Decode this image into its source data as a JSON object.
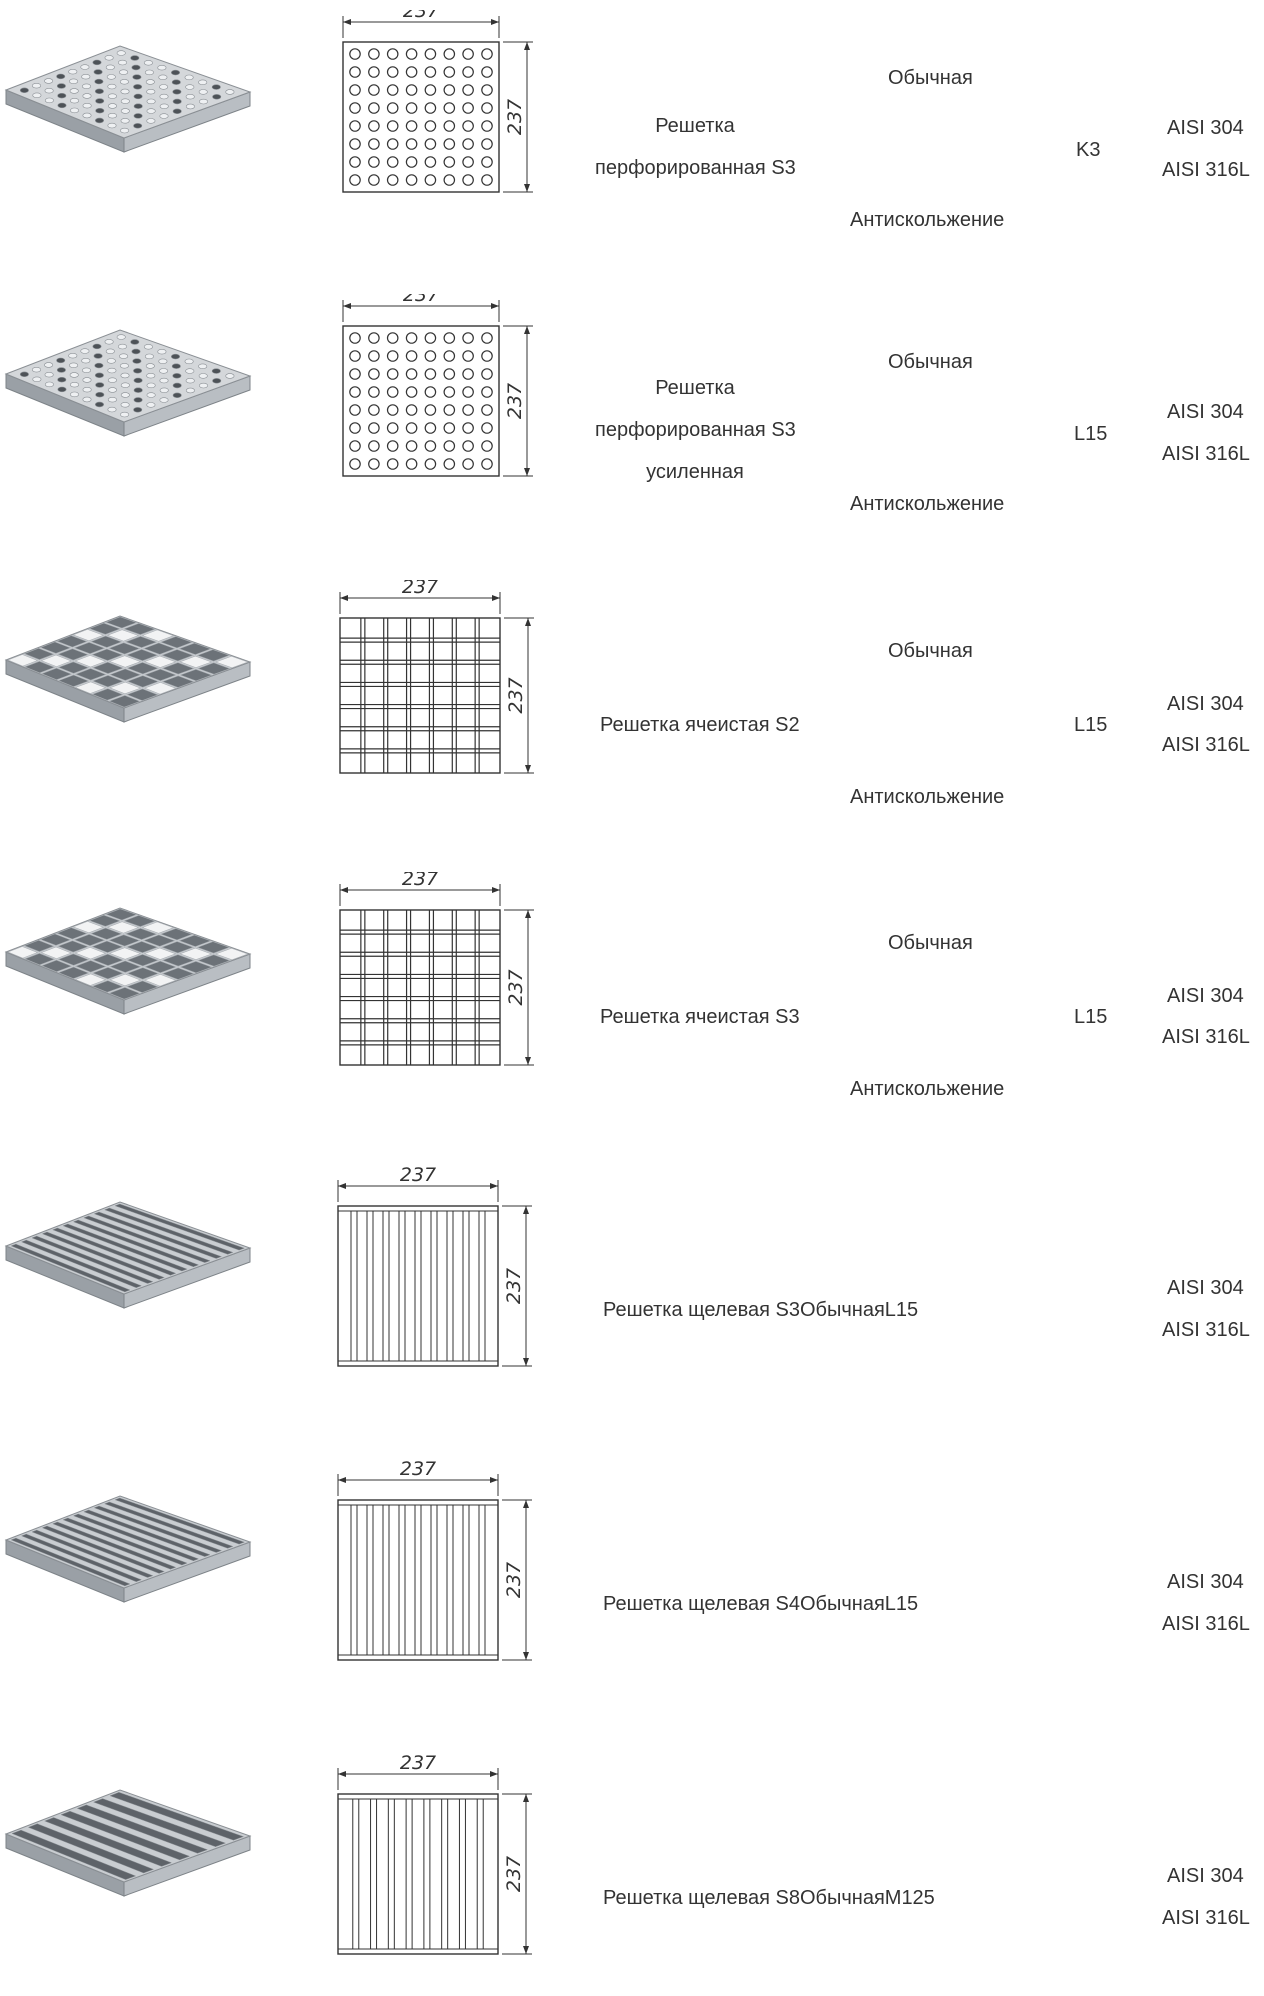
{
  "dimension_label": "237",
  "items": [
    {
      "grating_type": "perforated",
      "name_lines": [
        "Решетка",
        "перфорированная S3"
      ],
      "surface_top": "Обычная",
      "surface_bottom": "Антискольжение",
      "load_class": "K3",
      "materials": [
        "AISI 304",
        "AISI 316L"
      ]
    },
    {
      "grating_type": "perforated",
      "name_lines": [
        "Решетка",
        "перфорированная S3",
        "усиленная"
      ],
      "surface_top": "Обычная",
      "surface_bottom": "Антискольжение",
      "load_class": "L15",
      "materials": [
        "AISI 304",
        "AISI 316L"
      ]
    },
    {
      "grating_type": "mesh",
      "name_lines": [
        "Решетка ячеистая S2"
      ],
      "surface_top": "Обычная",
      "surface_bottom": "Антискольжение",
      "load_class": "L15",
      "materials": [
        "AISI 304",
        "AISI 316L"
      ]
    },
    {
      "grating_type": "mesh",
      "name_lines": [
        "Решетка ячеистая S3"
      ],
      "surface_top": "Обычная",
      "surface_bottom": "Антискольжение",
      "load_class": "L15",
      "materials": [
        "AISI 304",
        "AISI 316L"
      ]
    },
    {
      "grating_type": "slot",
      "combined_text": "Решетка щелевая S3ОбычнаяL15",
      "materials": [
        "AISI 304",
        "AISI 316L"
      ]
    },
    {
      "grating_type": "slot",
      "combined_text": "Решетка щелевая S4ОбычнаяL15",
      "materials": [
        "AISI 304",
        "AISI 316L"
      ]
    },
    {
      "grating_type": "slot",
      "combined_text": "Решетка щелевая S8ОбычнаяM125",
      "materials": [
        "AISI 304",
        "AISI 316L"
      ]
    }
  ]
}
